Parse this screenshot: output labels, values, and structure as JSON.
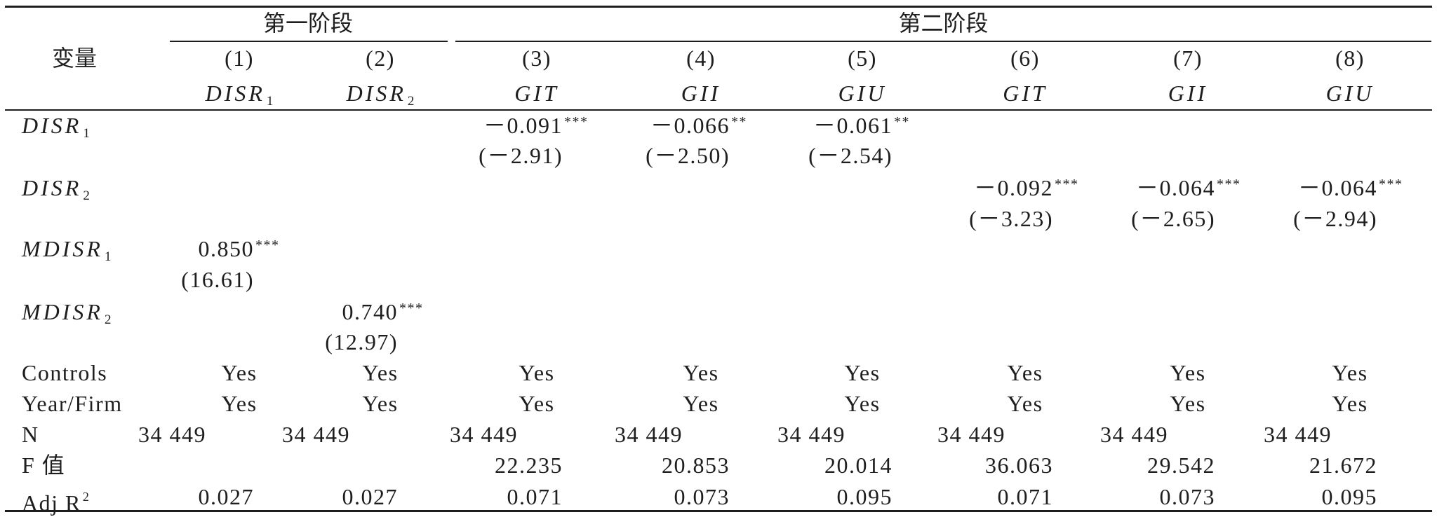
{
  "header": {
    "variable_label": "变量",
    "stage1_label": "第一阶段",
    "stage2_label": "第二阶段",
    "column_numbers": [
      "(1)",
      "(2)",
      "(3)",
      "(4)",
      "(5)",
      "(6)",
      "(7)",
      "(8)"
    ],
    "dependent_vars": [
      {
        "base": "DISR",
        "sub": "1"
      },
      {
        "base": "DISR",
        "sub": "2"
      },
      {
        "base": "GIT"
      },
      {
        "base": "GII"
      },
      {
        "base": "GIU"
      },
      {
        "base": "GIT"
      },
      {
        "base": "GII"
      },
      {
        "base": "GIU"
      }
    ]
  },
  "body": {
    "disr1": {
      "label": {
        "base": "DISR",
        "sub": "1"
      },
      "c3": {
        "coef": "－0.091",
        "stars": "***",
        "t": "(－2.91)"
      },
      "c4": {
        "coef": "－0.066",
        "stars": "**",
        "t": "(－2.50)"
      },
      "c5": {
        "coef": "－0.061",
        "stars": "**",
        "t": "(－2.54)"
      }
    },
    "disr2": {
      "label": {
        "base": "DISR",
        "sub": "2"
      },
      "c6": {
        "coef": "－0.092",
        "stars": "***",
        "t": "(－3.23)"
      },
      "c7": {
        "coef": "－0.064",
        "stars": "***",
        "t": "(－2.65)"
      },
      "c8": {
        "coef": "－0.064",
        "stars": "***",
        "t": "(－2.94)"
      }
    },
    "mdisr1": {
      "label": {
        "base": "MDISR",
        "sub": "1"
      },
      "c1": {
        "coef": "0.850",
        "stars": "***",
        "t": "(16.61)"
      }
    },
    "mdisr2": {
      "label": {
        "base": "MDISR",
        "sub": "2"
      },
      "c2": {
        "coef": "0.740",
        "stars": "***",
        "t": "(12.97)"
      }
    },
    "controls": {
      "label": "Controls",
      "values": [
        "Yes",
        "Yes",
        "Yes",
        "Yes",
        "Yes",
        "Yes",
        "Yes",
        "Yes"
      ]
    },
    "year_firm": {
      "label": "Year/Firm",
      "values": [
        "Yes",
        "Yes",
        "Yes",
        "Yes",
        "Yes",
        "Yes",
        "Yes",
        "Yes"
      ]
    },
    "n": {
      "label": "N",
      "values": [
        "34 449",
        "34 449",
        "34 449",
        "34 449",
        "34 449",
        "34 449",
        "34 449",
        "34 449"
      ]
    },
    "f_value": {
      "label": "F 值",
      "values": {
        "c3": "22.235",
        "c4": "20.853",
        "c5": "20.014",
        "c6": "36.063",
        "c7": "29.542",
        "c8": "21.672"
      }
    },
    "adj_r2": {
      "label": {
        "base": "Adj R",
        "sup": "2"
      },
      "values": [
        "0.027",
        "0.027",
        "0.071",
        "0.073",
        "0.095",
        "0.071",
        "0.073",
        "0.095"
      ]
    }
  }
}
